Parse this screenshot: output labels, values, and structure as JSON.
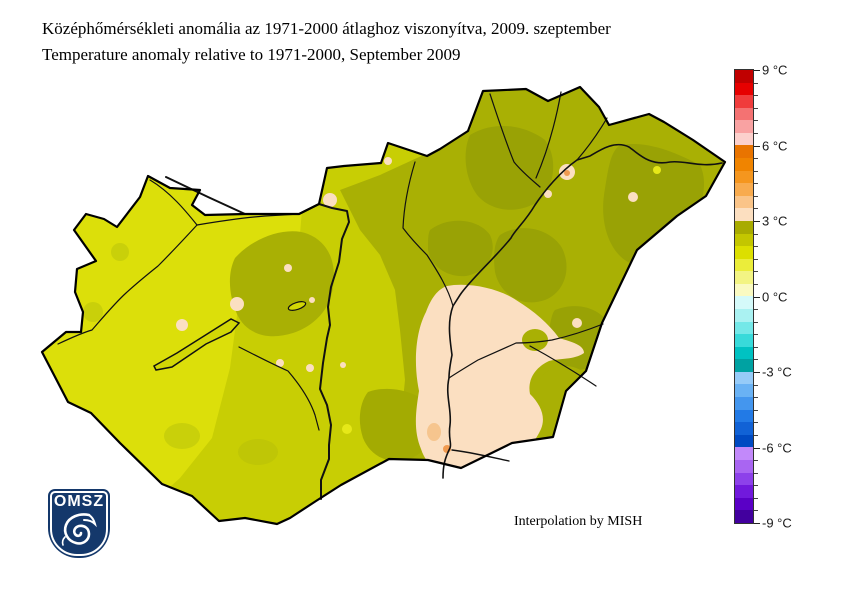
{
  "title": {
    "line1": "Középhőmérsékleti anomália az 1971-2000 átlaghoz viszonyítva, 2009. szeptember",
    "line2": "Temperature anomaly relative to 1971-2000, September 2009"
  },
  "credit": "Interpolation by MISH",
  "logo": {
    "text": "OMSZ",
    "bg": "#14386b"
  },
  "colorbar": {
    "unit": "°C",
    "max": 9,
    "min": -9,
    "degrees_per_segment": 0.5,
    "tick_values": [
      9,
      6,
      3,
      0,
      -3,
      -6,
      -9
    ],
    "labels": [
      "9 °C",
      "6 °C",
      "3 °C",
      "0 °C",
      "-3 °C",
      "-6 °C",
      "-9 °C"
    ],
    "segments": [
      "#c00000",
      "#e60000",
      "#f03c3c",
      "#f47272",
      "#f9a2a2",
      "#fcd0cc",
      "#e97400",
      "#f08400",
      "#f5961e",
      "#f8ab4e",
      "#fac488",
      "#fcdfc0",
      "#a8ab00",
      "#c3c600",
      "#dcdf00",
      "#ebed3a",
      "#f3f483",
      "#fafac2",
      "#d5fafa",
      "#aaf2f2",
      "#74e8e8",
      "#38dada",
      "#00c2c2",
      "#00a2a2",
      "#96cbf8",
      "#6ab2f4",
      "#4496ee",
      "#227ae6",
      "#1162d6",
      "#004ac2",
      "#c289fa",
      "#a965f2",
      "#8d41ea",
      "#7119dc",
      "#5a00c6",
      "#42009e"
    ]
  },
  "map_palette": {
    "base_mid": "#c8ce04",
    "west_bright": "#dcdf0a",
    "west_patch": "#c9d00a",
    "olive": "#a9b004",
    "olive_dark": "#99a205",
    "olive_soft": "#a3ab02",
    "south_patch": "#bfc606",
    "peach": "#fbdfc1",
    "peach_dark": "#f6c58e",
    "orange_spot": "#f09a50",
    "yellow_spot": "#e6e818",
    "lake_fill": "#d2d705",
    "river": "#111111",
    "border": "#000000",
    "background": "#ffffff"
  }
}
